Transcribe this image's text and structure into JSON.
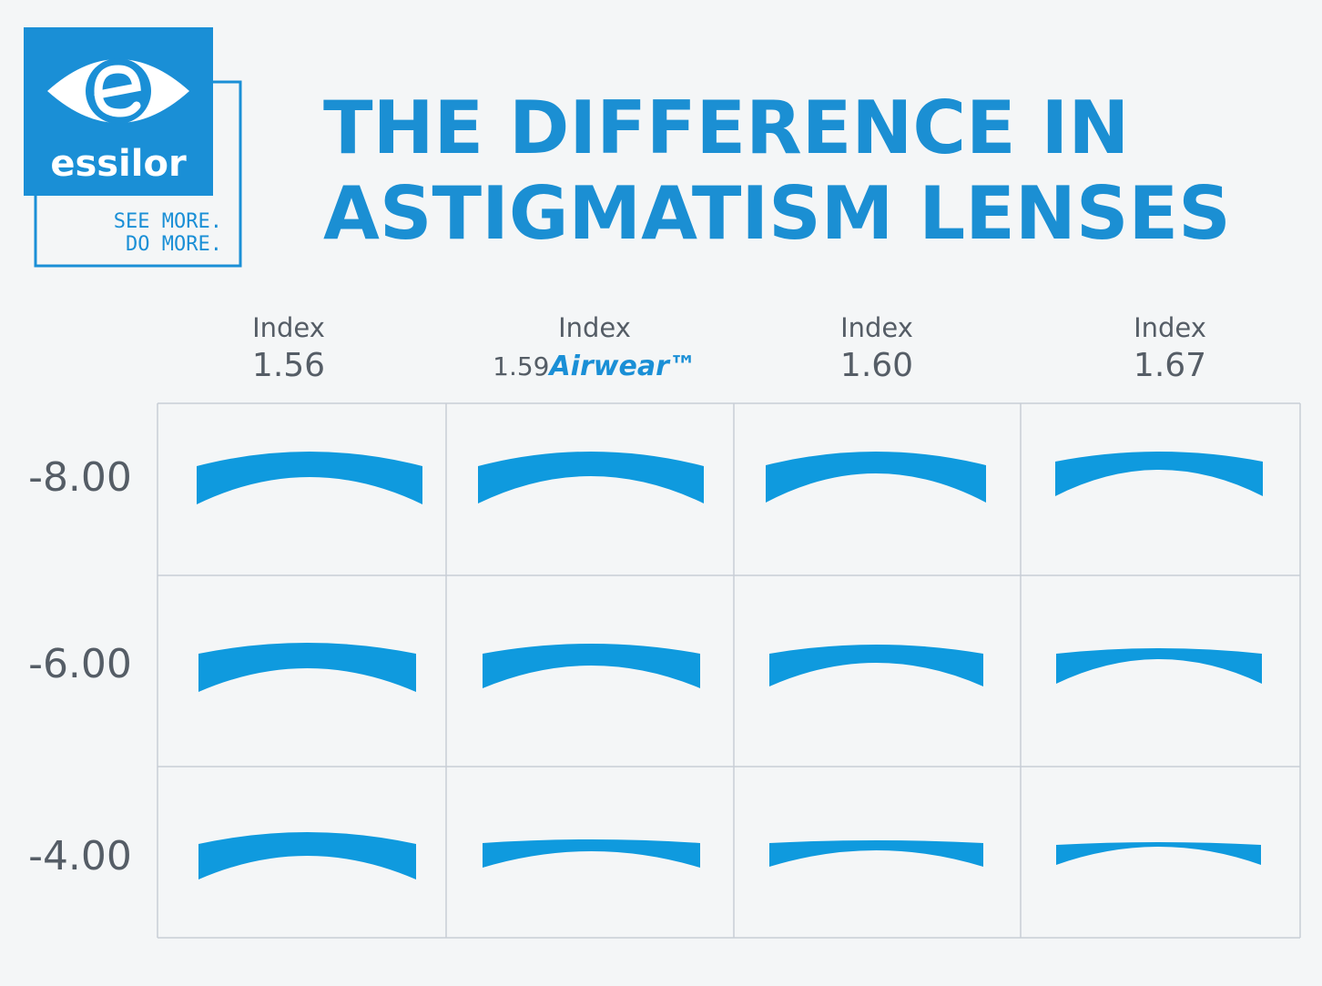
{
  "logo": {
    "brand": "essilor",
    "tagline": [
      "SEE MORE.",
      "DO MORE."
    ]
  },
  "title": [
    "THE DIFFERENCE IN",
    "ASTIGMATISM LENSES"
  ],
  "columns": [
    {
      "label": "Index",
      "value": "1.56"
    },
    {
      "label": "Index",
      "value": "1.59",
      "brand": "Airwear™"
    },
    {
      "label": "Index",
      "value": "1.60"
    },
    {
      "label": "Index",
      "value": "1.67"
    }
  ],
  "rows": [
    "-8.00",
    "-6.00",
    "-4.00"
  ]
}
